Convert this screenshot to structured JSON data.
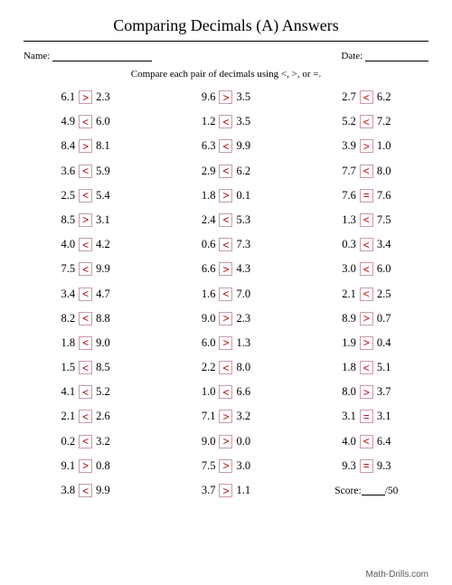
{
  "title": "Comparing Decimals (A) Answers",
  "nameLabel": "Name:",
  "dateLabel": "Date:",
  "instructions": "Compare each pair of decimals using <, >, or =.",
  "scoreLabel": "Score:",
  "scoreTotal": "/50",
  "footer": "Math-Drills.com",
  "opColor": "#b00000",
  "boxBorder": "#c9a",
  "columns": [
    [
      {
        "l": "6.1",
        "op": ">",
        "r": "2.3"
      },
      {
        "l": "4.9",
        "op": "<",
        "r": "6.0"
      },
      {
        "l": "8.4",
        "op": ">",
        "r": "8.1"
      },
      {
        "l": "3.6",
        "op": "<",
        "r": "5.9"
      },
      {
        "l": "2.5",
        "op": "<",
        "r": "5.4"
      },
      {
        "l": "8.5",
        "op": ">",
        "r": "3.1"
      },
      {
        "l": "4.0",
        "op": "<",
        "r": "4.2"
      },
      {
        "l": "7.5",
        "op": "<",
        "r": "9.9"
      },
      {
        "l": "3.4",
        "op": "<",
        "r": "4.7"
      },
      {
        "l": "8.2",
        "op": "<",
        "r": "8.8"
      },
      {
        "l": "1.8",
        "op": "<",
        "r": "9.0"
      },
      {
        "l": "1.5",
        "op": "<",
        "r": "8.5"
      },
      {
        "l": "4.1",
        "op": "<",
        "r": "5.2"
      },
      {
        "l": "2.1",
        "op": "<",
        "r": "2.6"
      },
      {
        "l": "0.2",
        "op": "<",
        "r": "3.2"
      },
      {
        "l": "9.1",
        "op": ">",
        "r": "0.8"
      },
      {
        "l": "3.8",
        "op": "<",
        "r": "9.9"
      }
    ],
    [
      {
        "l": "9.6",
        "op": ">",
        "r": "3.5"
      },
      {
        "l": "1.2",
        "op": "<",
        "r": "3.5"
      },
      {
        "l": "6.3",
        "op": "<",
        "r": "9.9"
      },
      {
        "l": "2.9",
        "op": "<",
        "r": "6.2"
      },
      {
        "l": "1.8",
        "op": ">",
        "r": "0.1"
      },
      {
        "l": "2.4",
        "op": "<",
        "r": "5.3"
      },
      {
        "l": "0.6",
        "op": "<",
        "r": "7.3"
      },
      {
        "l": "6.6",
        "op": ">",
        "r": "4.3"
      },
      {
        "l": "1.6",
        "op": "<",
        "r": "7.0"
      },
      {
        "l": "9.0",
        "op": ">",
        "r": "2.3"
      },
      {
        "l": "6.0",
        "op": ">",
        "r": "1.3"
      },
      {
        "l": "2.2",
        "op": "<",
        "r": "8.0"
      },
      {
        "l": "1.0",
        "op": "<",
        "r": "6.6"
      },
      {
        "l": "7.1",
        "op": ">",
        "r": "3.2"
      },
      {
        "l": "9.0",
        "op": ">",
        "r": "0.0"
      },
      {
        "l": "7.5",
        "op": ">",
        "r": "3.0"
      },
      {
        "l": "3.7",
        "op": ">",
        "r": "1.1"
      }
    ],
    [
      {
        "l": "2.7",
        "op": "<",
        "r": "6.2"
      },
      {
        "l": "5.2",
        "op": "<",
        "r": "7.2"
      },
      {
        "l": "3.9",
        "op": ">",
        "r": "1.0"
      },
      {
        "l": "7.7",
        "op": "<",
        "r": "8.0"
      },
      {
        "l": "7.6",
        "op": "=",
        "r": "7.6"
      },
      {
        "l": "1.3",
        "op": "<",
        "r": "7.5"
      },
      {
        "l": "0.3",
        "op": "<",
        "r": "3.4"
      },
      {
        "l": "3.0",
        "op": "<",
        "r": "6.0"
      },
      {
        "l": "2.1",
        "op": "<",
        "r": "2.5"
      },
      {
        "l": "8.9",
        "op": ">",
        "r": "0.7"
      },
      {
        "l": "1.9",
        "op": ">",
        "r": "0.4"
      },
      {
        "l": "1.8",
        "op": "<",
        "r": "5.1"
      },
      {
        "l": "8.0",
        "op": ">",
        "r": "3.7"
      },
      {
        "l": "3.1",
        "op": "=",
        "r": "3.1"
      },
      {
        "l": "4.0",
        "op": "<",
        "r": "6.4"
      },
      {
        "l": "9.3",
        "op": "=",
        "r": "9.3"
      }
    ]
  ]
}
